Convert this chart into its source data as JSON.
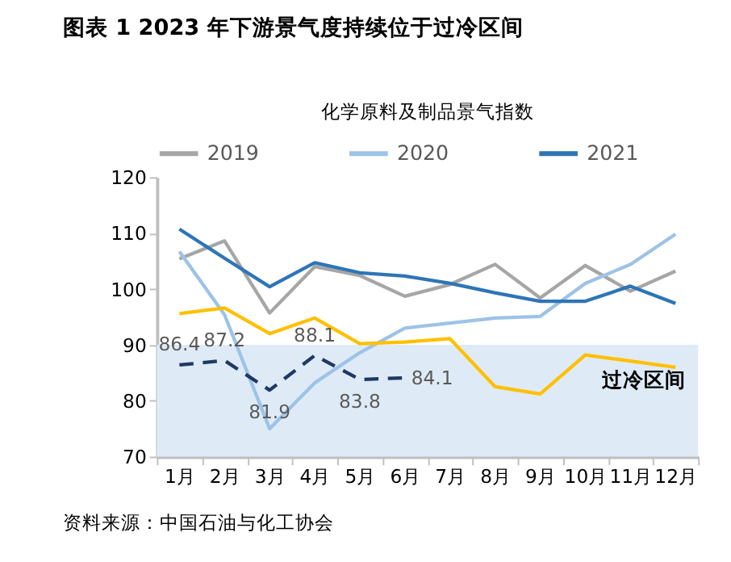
{
  "chart_data": {
    "type": "line",
    "title": "图表 1 2023 年下游景气度持续位于过冷区间",
    "subtitle": "化学原料及制品景气指数",
    "categories": [
      "1月",
      "2月",
      "3月",
      "4月",
      "5月",
      "6月",
      "7月",
      "8月",
      "9月",
      "10月",
      "11月",
      "12月"
    ],
    "series": [
      {
        "name": "2019",
        "color": "#a6a6a6",
        "values": [
          105.4,
          108.6,
          95.7,
          104.0,
          102.4,
          98.7,
          100.8,
          104.4,
          98.4,
          104.2,
          99.6,
          103.2
        ]
      },
      {
        "name": "2020",
        "color": "#9dc3e6",
        "values": [
          106.7,
          95.4,
          75.0,
          83.2,
          88.6,
          93.0,
          93.9,
          94.8,
          95.1,
          101.0,
          104.4,
          109.8
        ]
      },
      {
        "name": "2021",
        "color": "#2e75b6",
        "values": [
          110.7,
          105.5,
          100.4,
          104.7,
          102.9,
          102.3,
          101.0,
          99.3,
          97.8,
          97.8,
          100.5,
          97.4
        ]
      },
      {
        "color": "#ffc000",
        "values": [
          95.6,
          96.6,
          92.0,
          94.8,
          90.2,
          90.5,
          91.1,
          82.5,
          81.2,
          88.2,
          87.1,
          86.0
        ]
      },
      {
        "color": "#203864",
        "line_style": "dashed",
        "values": [
          86.4,
          87.2,
          81.9,
          88.1,
          83.8,
          84.1,
          null,
          null,
          null,
          null,
          null,
          null
        ],
        "value_labels": [
          "86.4",
          "87.2",
          "81.9",
          "88.1",
          "83.8",
          "84.1",
          null,
          null,
          null,
          null,
          null,
          null
        ]
      }
    ],
    "ylim": [
      70,
      120
    ],
    "yticks": [
      70,
      80,
      90,
      100,
      110,
      120
    ],
    "bands": [
      {
        "axis": "y",
        "from": 70,
        "to": 90,
        "label": "过冷区间",
        "color": "#deebf7"
      }
    ],
    "grid": false,
    "legend": "top",
    "marker": "none",
    "annotations": [
      "资料来源：中国石油与化工协会"
    ]
  }
}
